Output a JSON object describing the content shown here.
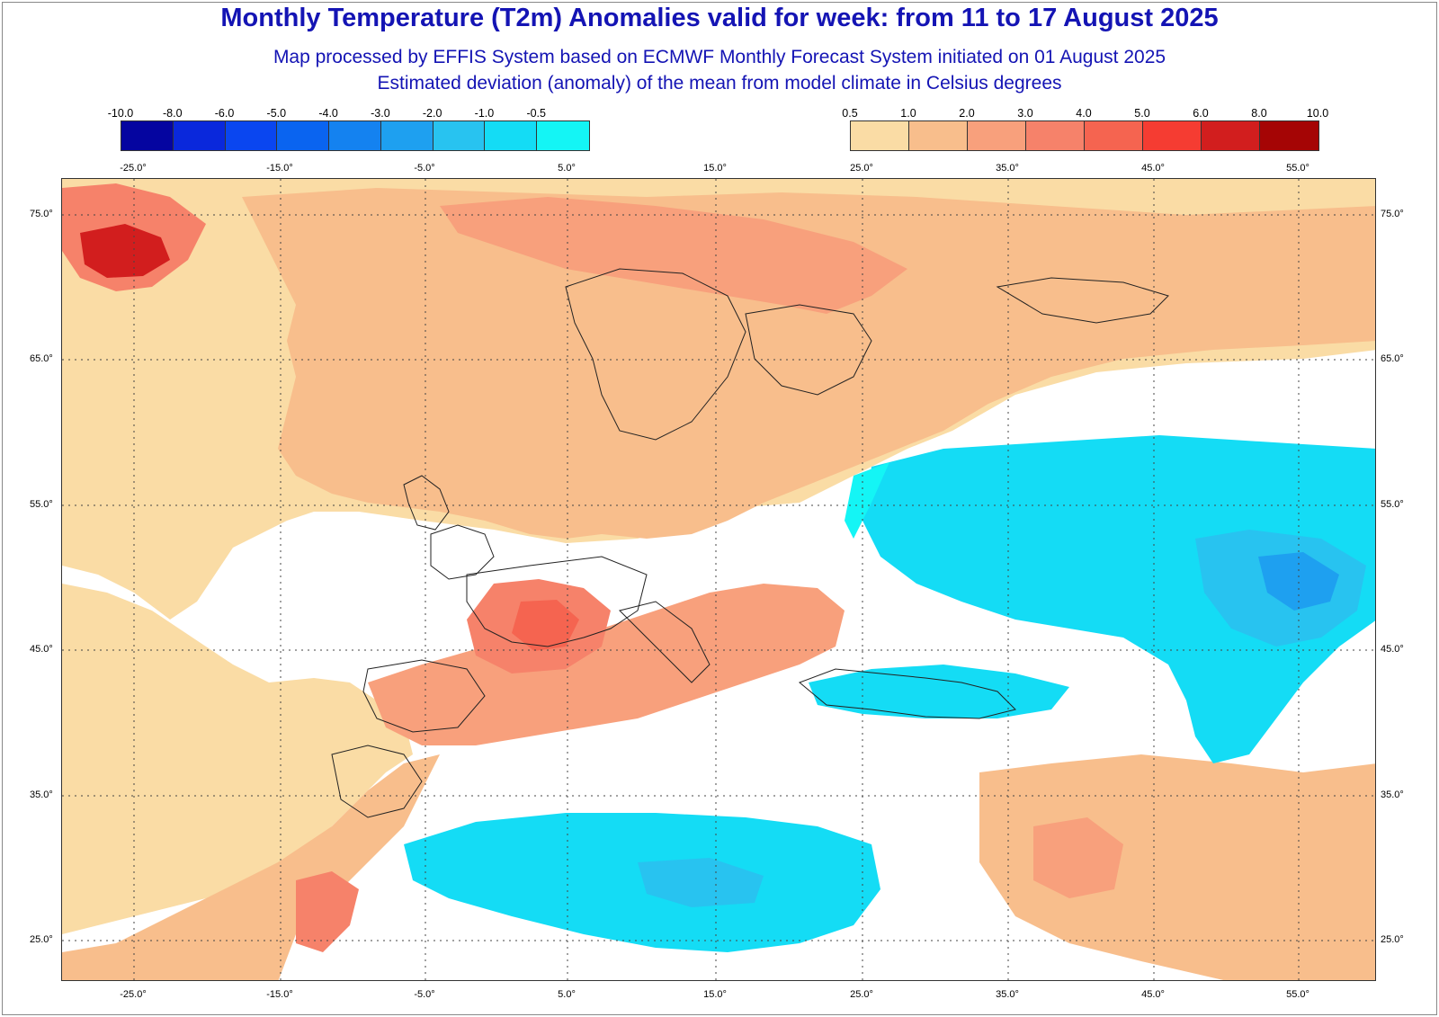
{
  "title": "Monthly Temperature (T2m) Anomalies valid for week: from 11 to 17 August 2025",
  "subtitle1": "Map processed by EFFIS System based on ECMWF Monthly Forecast System initiated on 01 August 2025",
  "subtitle2": "Estimated deviation (anomaly) of the mean from model climate in Celsius degrees",
  "legend_cold": {
    "labels": [
      "-10.0",
      "-8.0",
      "-6.0",
      "-5.0",
      "-4.0",
      "-3.0",
      "-2.0",
      "-1.0",
      "-0.5"
    ],
    "colors": [
      "#0505a0",
      "#0a28dc",
      "#0a46f0",
      "#0a64f0",
      "#1482f0",
      "#1ea0f0",
      "#28c3f0",
      "#14dcf5",
      "#14f5f5"
    ]
  },
  "legend_warm": {
    "labels": [
      "0.5",
      "1.0",
      "2.0",
      "3.0",
      "4.0",
      "5.0",
      "6.0",
      "8.0",
      "10.0"
    ],
    "colors": [
      "#fadca5",
      "#f8be8c",
      "#f8a07c",
      "#f6826a",
      "#f56450",
      "#f53c32",
      "#d21e1e",
      "#a50505"
    ]
  },
  "lon_labels": [
    "-25.0°",
    "-15.0°",
    "-5.0°",
    "5.0°",
    "15.0°",
    "25.0°",
    "35.0°",
    "45.0°",
    "55.0°"
  ],
  "lat_labels": [
    "75.0°",
    "65.0°",
    "55.0°",
    "45.0°",
    "35.0°",
    "25.0°"
  ],
  "map_colors": {
    "neutral": "#ffffff",
    "warm1": "#fadca5",
    "warm2": "#f8be8c",
    "warm3": "#f8a07c",
    "warm4": "#f6826a",
    "warm5": "#f56450",
    "warm7": "#d21e1e",
    "cold1": "#14f5f5",
    "cold2": "#14dcf5",
    "cold3": "#28c3f0",
    "cold4": "#1ea0f0"
  }
}
